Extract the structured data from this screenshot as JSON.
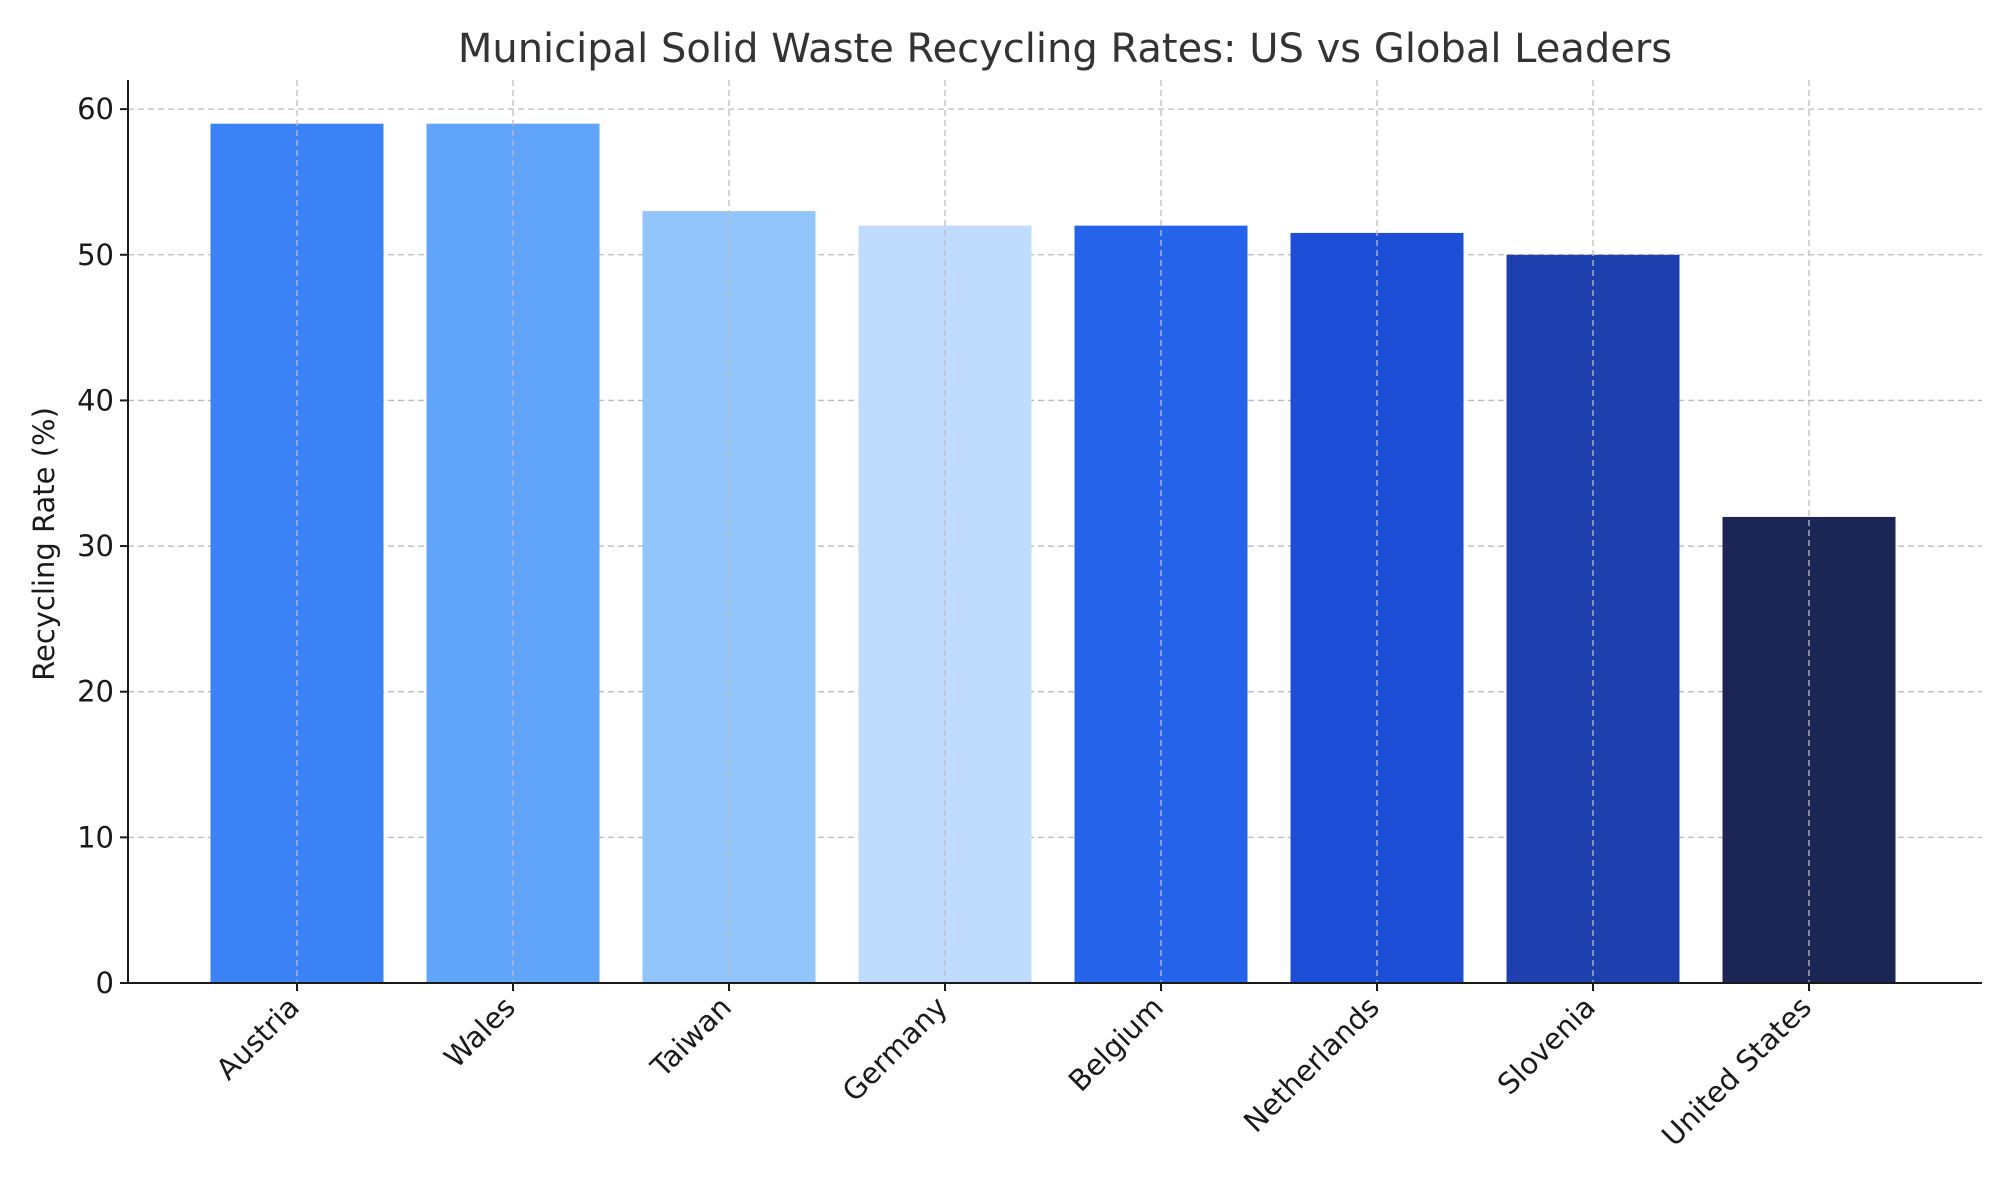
{
  "chart_data": {
    "type": "bar",
    "title": "Municipal Solid Waste Recycling Rates: US vs Global Leaders",
    "xlabel": "",
    "ylabel": "Recycling Rate (%)",
    "ylim": [
      0,
      62
    ],
    "yticks": [
      0,
      10,
      20,
      30,
      40,
      50,
      60
    ],
    "grid": true,
    "categories": [
      "Austria",
      "Wales",
      "Taiwan",
      "Germany",
      "Belgium",
      "Netherlands",
      "Slovenia",
      "United States"
    ],
    "values": [
      59,
      59,
      53,
      52,
      52,
      51.5,
      50,
      32
    ],
    "colors": [
      "#3b82f6",
      "#60a5fa",
      "#93c5fd",
      "#bfdbfe",
      "#2563eb",
      "#1d4ed8",
      "#1e40af",
      "#1b2655"
    ]
  }
}
